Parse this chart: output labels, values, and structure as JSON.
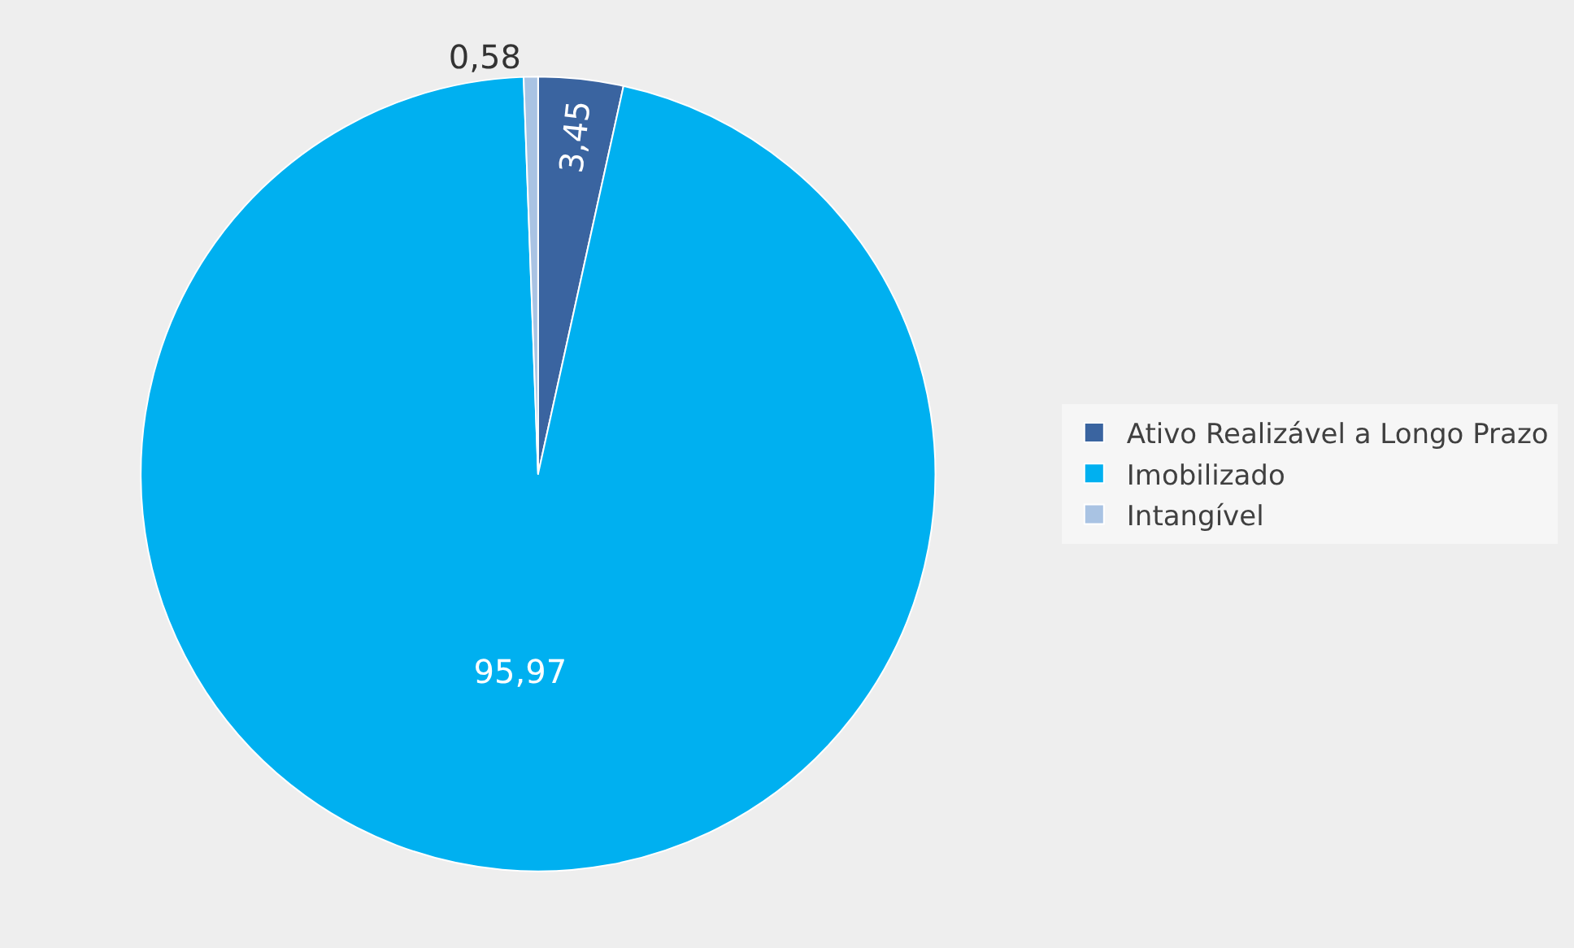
{
  "chart_data": {
    "type": "pie",
    "categories": [
      "Ativo Realizável a Longo Prazo",
      "Imobilizado",
      "Intangível"
    ],
    "values": [
      3.45,
      95.97,
      0.58
    ],
    "value_labels": [
      "3,45",
      "95,97",
      "0,58"
    ],
    "colors": [
      "#3a64a0",
      "#00b0f0",
      "#a9c3e3"
    ],
    "legend": "right"
  }
}
